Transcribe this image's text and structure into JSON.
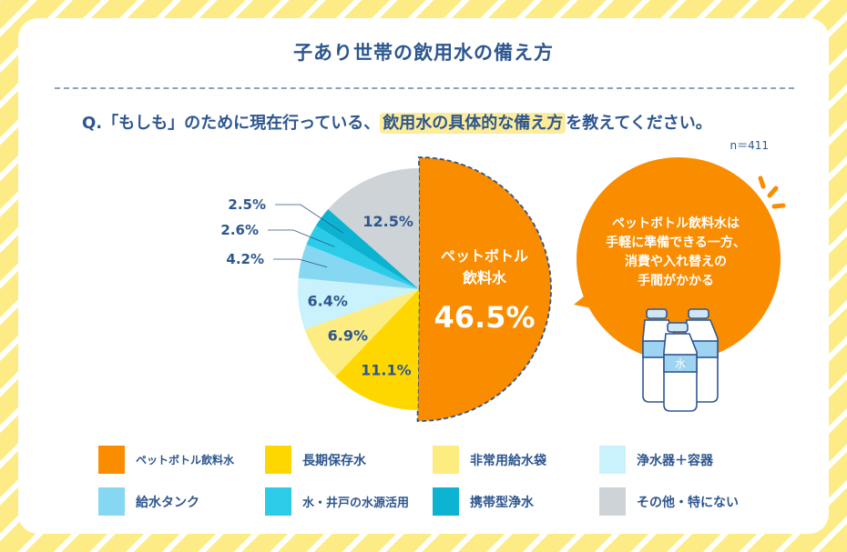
{
  "header": {
    "title": "子あり世帯の飲用水の備え方",
    "question_prefix": "Q.「もしも」のために現在行っている、",
    "question_highlight": "飲用水の具体的な備え方",
    "question_suffix": "を教えてください。",
    "sample_size": "n＝411"
  },
  "callout": {
    "lines": [
      "ペットボトル飲料水は",
      "手軽に準備できる一方、",
      "消費や入れ替えの",
      "手間がかかる"
    ],
    "bottle_label": "水"
  },
  "chart_data": {
    "type": "pie",
    "title": "子あり世帯の飲用水の備え方",
    "unit": "%",
    "slices": [
      {
        "name": "ペットボトル飲料水",
        "value": 46.5,
        "label": "46.5%",
        "inner_title_lines": [
          "ペットボトル",
          "飲料水"
        ],
        "color": "#fa8c00",
        "highlighted": true
      },
      {
        "name": "長期保存水",
        "value": 11.1,
        "label": "11.1%",
        "color": "#ffd700"
      },
      {
        "name": "非常用給水袋",
        "value": 6.9,
        "label": "6.9%",
        "color": "#fdec80"
      },
      {
        "name": "浄水器＋容器",
        "value": 6.4,
        "label": "6.4%",
        "color": "#c9f2fc"
      },
      {
        "name": "給水タンク",
        "value": 4.2,
        "label": "4.2%",
        "color": "#86d7f1"
      },
      {
        "name": "水・井戸の水源活用",
        "value": 2.6,
        "label": "2.6%",
        "color": "#2ccbe8"
      },
      {
        "name": "携帯型浄水",
        "value": 2.5,
        "label": "2.5%",
        "color": "#0cb3d1"
      },
      {
        "name": "その他・特にない",
        "value": 12.5,
        "label": "12.5%",
        "color": "#cdd3d6"
      }
    ],
    "legend": [
      "ペットボトル飲料水",
      "長期保存水",
      "非常用給水袋",
      "浄水器＋容器",
      "給水タンク",
      "水・井戸の水源活用",
      "携帯型浄水",
      "その他・特にない"
    ],
    "legend_position": "bottom"
  }
}
